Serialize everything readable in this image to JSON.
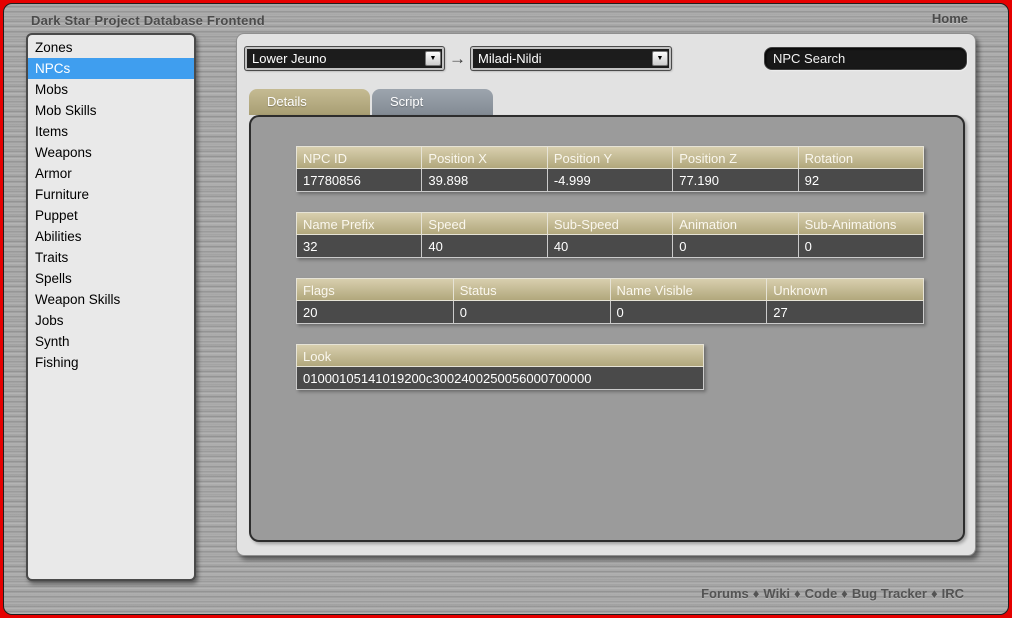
{
  "window": {
    "title": "Dark Star Project Database Frontend",
    "home_label": "Home"
  },
  "sidebar": {
    "items": [
      {
        "label": "Zones",
        "selected": false
      },
      {
        "label": "NPCs",
        "selected": true
      },
      {
        "label": "Mobs",
        "selected": false
      },
      {
        "label": "Mob Skills",
        "selected": false
      },
      {
        "label": "Items",
        "selected": false
      },
      {
        "label": "Weapons",
        "selected": false
      },
      {
        "label": "Armor",
        "selected": false
      },
      {
        "label": "Furniture",
        "selected": false
      },
      {
        "label": "Puppet",
        "selected": false
      },
      {
        "label": "Abilities",
        "selected": false
      },
      {
        "label": "Traits",
        "selected": false
      },
      {
        "label": "Spells",
        "selected": false
      },
      {
        "label": "Weapon Skills",
        "selected": false
      },
      {
        "label": "Jobs",
        "selected": false
      },
      {
        "label": "Synth",
        "selected": false
      },
      {
        "label": "Fishing",
        "selected": false
      }
    ]
  },
  "toolbar": {
    "zone_select": {
      "value": "Lower Jeuno"
    },
    "arrow": "→",
    "npc_select": {
      "value": "Miladi-Nildi"
    },
    "search": {
      "placeholder": "NPC Search"
    },
    "dropdown_glyph": "▼"
  },
  "tabs": [
    {
      "label": "Details",
      "active": true
    },
    {
      "label": "Script",
      "active": false
    }
  ],
  "details": {
    "tables": [
      {
        "name": "position",
        "headers": [
          "NPC ID",
          "Position X",
          "Position Y",
          "Position Z",
          "Rotation"
        ],
        "values": [
          "17780856",
          "39.898",
          "-4.999",
          "77.190",
          "92"
        ]
      },
      {
        "name": "movement",
        "headers": [
          "Name Prefix",
          "Speed",
          "Sub-Speed",
          "Animation",
          "Sub-Animations"
        ],
        "values": [
          "32",
          "40",
          "40",
          "0",
          "0"
        ]
      },
      {
        "name": "flags",
        "headers": [
          "Flags",
          "Status",
          "Name Visible",
          "Unknown"
        ],
        "values": [
          "20",
          "0",
          "0",
          "27"
        ]
      },
      {
        "name": "look",
        "headers": [
          "Look"
        ],
        "values": [
          "01000105141019200c3002400250056000700000"
        ]
      }
    ]
  },
  "footer": {
    "links": [
      "Forums",
      "Wiki",
      "Code",
      "Bug Tracker",
      "IRC"
    ],
    "separator": "♦"
  },
  "colors": {
    "border_red": "#e60000",
    "selected_blue": "#3f9eef",
    "header_khaki": "#b1a77c",
    "cell_dark": "#4a4a4a",
    "tab_inactive": "#828a93"
  }
}
